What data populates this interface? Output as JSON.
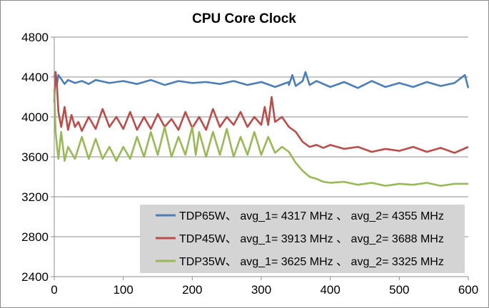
{
  "chart_data": {
    "type": "line",
    "title": "CPU Core Clock",
    "xlabel": "",
    "ylabel": "",
    "xlim": [
      0,
      600
    ],
    "ylim": [
      2400,
      4800
    ],
    "x_ticks": [
      0,
      100,
      200,
      300,
      400,
      500,
      600
    ],
    "y_ticks": [
      2400,
      2800,
      3200,
      3600,
      4000,
      4400,
      4800
    ],
    "grid": true,
    "legend_position": "bottom-right",
    "series": [
      {
        "name": "TDP65W、 avg_1= 4317 MHz 、 avg_2= 4355 MHz",
        "color": "#4a7ebb",
        "points": [
          [
            0,
            4400
          ],
          [
            2,
            4450
          ],
          [
            4,
            4330
          ],
          [
            6,
            4420
          ],
          [
            10,
            4380
          ],
          [
            15,
            4330
          ],
          [
            20,
            4370
          ],
          [
            30,
            4340
          ],
          [
            40,
            4360
          ],
          [
            50,
            4330
          ],
          [
            60,
            4370
          ],
          [
            80,
            4340
          ],
          [
            100,
            4360
          ],
          [
            120,
            4330
          ],
          [
            140,
            4370
          ],
          [
            160,
            4320
          ],
          [
            180,
            4360
          ],
          [
            200,
            4340
          ],
          [
            220,
            4350
          ],
          [
            240,
            4330
          ],
          [
            260,
            4360
          ],
          [
            280,
            4320
          ],
          [
            300,
            4350
          ],
          [
            320,
            4300
          ],
          [
            340,
            4350
          ],
          [
            340,
            4320
          ],
          [
            345,
            4420
          ],
          [
            350,
            4310
          ],
          [
            360,
            4360
          ],
          [
            364,
            4450
          ],
          [
            370,
            4320
          ],
          [
            380,
            4360
          ],
          [
            400,
            4300
          ],
          [
            420,
            4350
          ],
          [
            440,
            4290
          ],
          [
            460,
            4360
          ],
          [
            480,
            4300
          ],
          [
            500,
            4340
          ],
          [
            520,
            4300
          ],
          [
            540,
            4350
          ],
          [
            560,
            4310
          ],
          [
            580,
            4340
          ],
          [
            595,
            4420
          ],
          [
            600,
            4290
          ]
        ]
      },
      {
        "name": "TDP45W、 avg_1= 3913 MHz 、 avg_2= 3688 MHz",
        "color": "#be4b48",
        "points": [
          [
            0,
            4150
          ],
          [
            2,
            4450
          ],
          [
            4,
            4300
          ],
          [
            6,
            4050
          ],
          [
            10,
            3900
          ],
          [
            15,
            4100
          ],
          [
            20,
            3870
          ],
          [
            25,
            4020
          ],
          [
            30,
            3900
          ],
          [
            35,
            3950
          ],
          [
            40,
            3860
          ],
          [
            50,
            4000
          ],
          [
            60,
            3880
          ],
          [
            70,
            4080
          ],
          [
            80,
            3900
          ],
          [
            90,
            4000
          ],
          [
            100,
            3880
          ],
          [
            110,
            4050
          ],
          [
            120,
            3870
          ],
          [
            130,
            4000
          ],
          [
            140,
            3880
          ],
          [
            150,
            4030
          ],
          [
            160,
            3900
          ],
          [
            170,
            3980
          ],
          [
            180,
            3870
          ],
          [
            190,
            4050
          ],
          [
            200,
            3890
          ],
          [
            210,
            4000
          ],
          [
            220,
            3870
          ],
          [
            230,
            4080
          ],
          [
            240,
            3900
          ],
          [
            250,
            4000
          ],
          [
            260,
            3920
          ],
          [
            270,
            4050
          ],
          [
            280,
            3900
          ],
          [
            290,
            4000
          ],
          [
            300,
            3920
          ],
          [
            305,
            4100
          ],
          [
            310,
            3920
          ],
          [
            315,
            4200
          ],
          [
            320,
            3950
          ],
          [
            330,
            4000
          ],
          [
            340,
            3900
          ],
          [
            350,
            3850
          ],
          [
            360,
            3750
          ],
          [
            370,
            3700
          ],
          [
            380,
            3720
          ],
          [
            390,
            3690
          ],
          [
            400,
            3720
          ],
          [
            420,
            3680
          ],
          [
            440,
            3700
          ],
          [
            460,
            3650
          ],
          [
            480,
            3680
          ],
          [
            500,
            3660
          ],
          [
            520,
            3700
          ],
          [
            540,
            3650
          ],
          [
            560,
            3690
          ],
          [
            580,
            3640
          ],
          [
            600,
            3700
          ]
        ]
      },
      {
        "name": "TDP35W、 avg_1= 3625 MHz 、 avg_2= 3325 MHz",
        "color": "#98b954",
        "points": [
          [
            0,
            4280
          ],
          [
            2,
            3850
          ],
          [
            4,
            3700
          ],
          [
            6,
            3580
          ],
          [
            10,
            3850
          ],
          [
            15,
            3560
          ],
          [
            20,
            3700
          ],
          [
            30,
            3580
          ],
          [
            40,
            3800
          ],
          [
            50,
            3580
          ],
          [
            60,
            3780
          ],
          [
            70,
            3580
          ],
          [
            80,
            3700
          ],
          [
            90,
            3560
          ],
          [
            100,
            3700
          ],
          [
            110,
            3580
          ],
          [
            120,
            3800
          ],
          [
            130,
            3600
          ],
          [
            140,
            3850
          ],
          [
            150,
            3620
          ],
          [
            160,
            3900
          ],
          [
            170,
            3600
          ],
          [
            180,
            3800
          ],
          [
            190,
            3620
          ],
          [
            200,
            3900
          ],
          [
            205,
            3620
          ],
          [
            210,
            3850
          ],
          [
            220,
            3600
          ],
          [
            230,
            3850
          ],
          [
            240,
            3620
          ],
          [
            250,
            3880
          ],
          [
            260,
            3600
          ],
          [
            270,
            3800
          ],
          [
            280,
            3620
          ],
          [
            290,
            3850
          ],
          [
            300,
            3620
          ],
          [
            310,
            3800
          ],
          [
            320,
            3640
          ],
          [
            330,
            3700
          ],
          [
            340,
            3650
          ],
          [
            350,
            3540
          ],
          [
            360,
            3460
          ],
          [
            370,
            3400
          ],
          [
            380,
            3380
          ],
          [
            390,
            3350
          ],
          [
            400,
            3340
          ],
          [
            420,
            3350
          ],
          [
            440,
            3320
          ],
          [
            460,
            3340
          ],
          [
            480,
            3310
          ],
          [
            500,
            3330
          ],
          [
            520,
            3320
          ],
          [
            540,
            3340
          ],
          [
            560,
            3310
          ],
          [
            580,
            3330
          ],
          [
            600,
            3330
          ]
        ]
      }
    ]
  }
}
